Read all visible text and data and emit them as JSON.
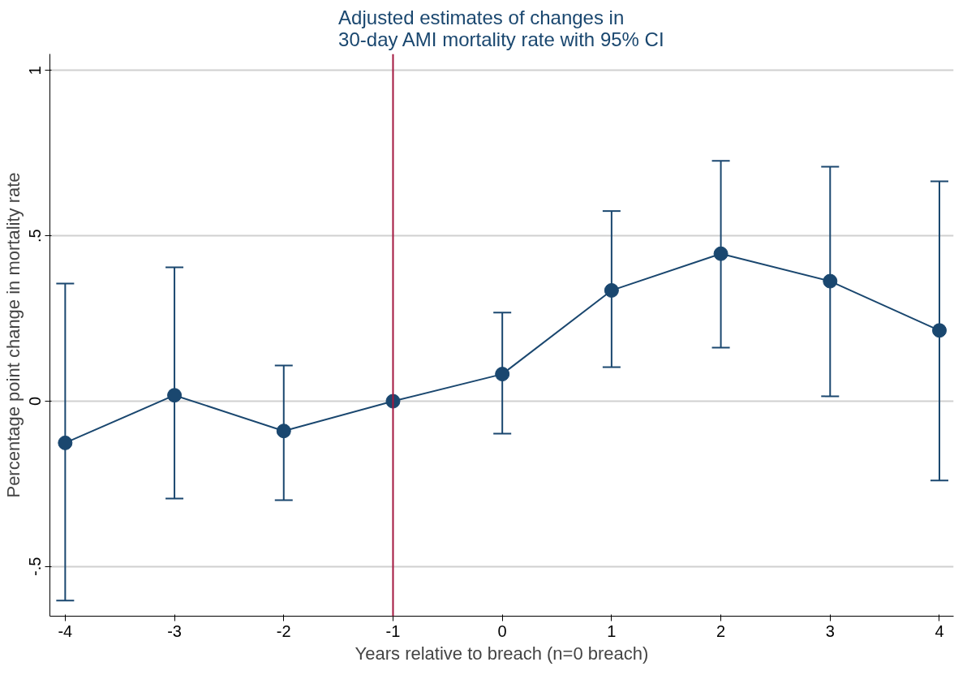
{
  "chart_data": {
    "type": "line",
    "title": "Adjusted estimates of changes in\n30-day AMI mortality rate with 95% CI",
    "xlabel": "Years relative to breach (n=0 breach)",
    "ylabel": "Percentage point change in mortality rate",
    "x": [
      -4,
      -3,
      -2,
      -1,
      0,
      1,
      2,
      3,
      4
    ],
    "series": [
      {
        "color": "#1a476f",
        "values": [
          -0.126,
          0.018,
          -0.09,
          0,
          0.082,
          0.335,
          0.446,
          0.363,
          0.214
        ],
        "errors": [
          [
            -0.603,
            0.356
          ],
          [
            -0.294,
            0.405
          ],
          [
            -0.299,
            0.108
          ],
          null,
          [
            -0.098,
            0.268
          ],
          [
            0.103,
            0.575
          ],
          [
            0.162,
            0.727
          ],
          [
            0.015,
            0.709
          ],
          [
            -0.24,
            0.665
          ]
        ]
      }
    ],
    "xlim": [
      -4.14,
      4.13
    ],
    "ylim": [
      -0.65,
      1.05
    ],
    "xticks": [
      -4,
      -3,
      -2,
      -1,
      0,
      1,
      2,
      3,
      4
    ],
    "yticks": [
      {
        "value": -0.5,
        "label": "-.5"
      },
      {
        "value": 0,
        "label": "0"
      },
      {
        "value": 0.5,
        "label": ".5"
      },
      {
        "value": 1,
        "label": "1"
      }
    ],
    "ref_lines": [
      {
        "axis": "x",
        "value": -1,
        "color": "#a3173f"
      }
    ],
    "grid": "y",
    "marker": "circle",
    "line_style": "solid"
  }
}
